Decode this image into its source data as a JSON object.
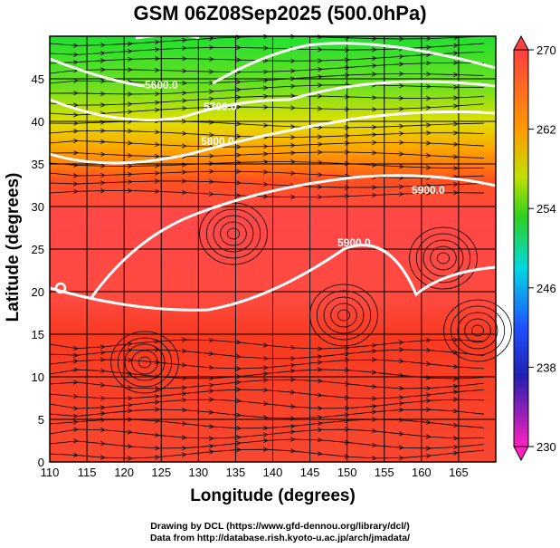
{
  "title": "GSM 06Z08Sep2025 (500.0hPa)",
  "chart_data": {
    "type": "heatmap",
    "title": "GSM 06Z08Sep2025 (500.0hPa)",
    "xlabel": "Longitude (degrees)",
    "ylabel": "Latitude  (degrees)",
    "xlim": [
      110,
      170
    ],
    "ylim": [
      0,
      50
    ],
    "xticks": [
      "110",
      "115",
      "120",
      "125",
      "130",
      "135",
      "140",
      "145",
      "150",
      "155",
      "160",
      "165"
    ],
    "yticks": [
      "0",
      "5",
      "10",
      "15",
      "20",
      "25",
      "30",
      "35",
      "40",
      "45"
    ],
    "grid": true,
    "fill": "temperature (colorbar 230–270)",
    "contours": [
      {
        "label": "5600.0"
      },
      {
        "label": "5700.0"
      },
      {
        "label": "5800.0"
      },
      {
        "label": "5900.0"
      },
      {
        "label": "5900.0"
      }
    ],
    "colorbar": {
      "range": [
        230,
        270
      ],
      "ticks": [
        "270",
        "262",
        "254",
        "246",
        "238",
        "230"
      ],
      "colors": [
        "#ff4040",
        "#ff9a00",
        "#40e020",
        "#00d8e0",
        "#2020c0",
        "#ff20c0"
      ],
      "placement": "right"
    },
    "overlay": "streamlines"
  },
  "credits": {
    "line1": "Drawing by DCL (https://www.gfd-dennou.org/library/dcl/)",
    "line2": "Data from http://database.rish.kyoto-u.ac.jp/arch/jmadata/"
  }
}
